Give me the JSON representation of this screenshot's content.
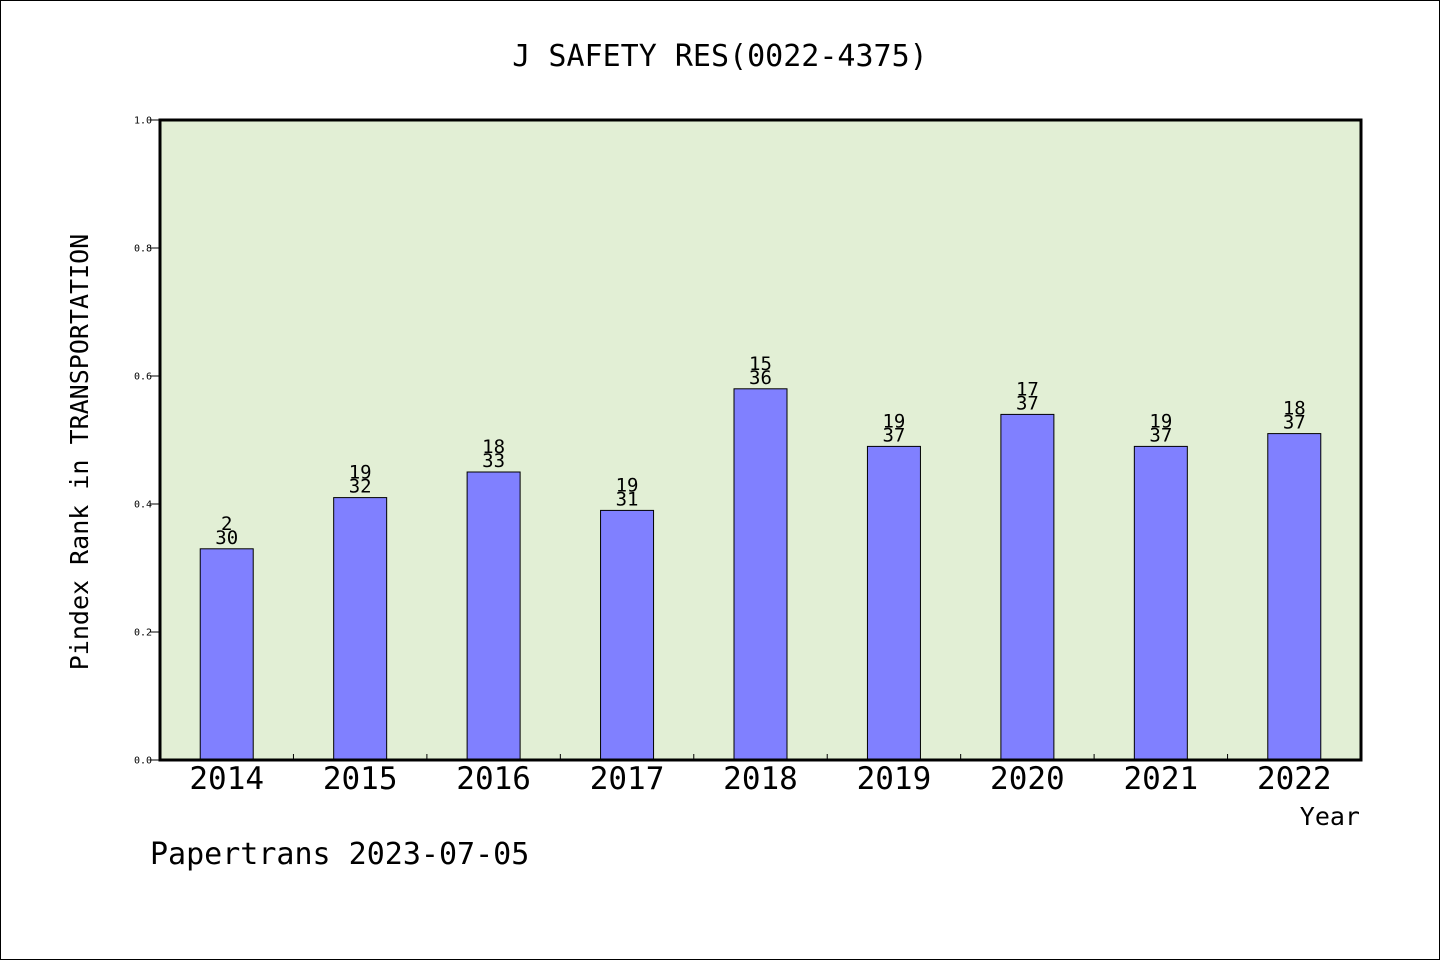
{
  "chart_data": {
    "type": "bar",
    "title": "J SAFETY RES(0022-4375)",
    "xlabel": "Year",
    "ylabel": "Pindex Rank in TRANSPORTATION",
    "categories": [
      "2014",
      "2015",
      "2016",
      "2017",
      "2018",
      "2019",
      "2020",
      "2021",
      "2022"
    ],
    "values": [
      0.33,
      0.41,
      0.45,
      0.39,
      0.58,
      0.49,
      0.54,
      0.49,
      0.51
    ],
    "rank_labels": [
      "2",
      "19",
      "18",
      "19",
      "15",
      "19",
      "17",
      "19",
      "18"
    ],
    "total_labels": [
      "30",
      "32",
      "33",
      "31",
      "36",
      "37",
      "37",
      "37",
      "37"
    ],
    "ylim": [
      0,
      1.0
    ],
    "yticks": [
      "0.0",
      "0.2",
      "0.4",
      "0.6",
      "0.8",
      "1.0"
    ],
    "grid": false,
    "legend": "none",
    "colors": {
      "bar": "#8080ff",
      "plot_background": "#e2efd5",
      "axis": "#000000"
    }
  },
  "footer": {
    "text": "Papertrans 2023-07-05"
  }
}
